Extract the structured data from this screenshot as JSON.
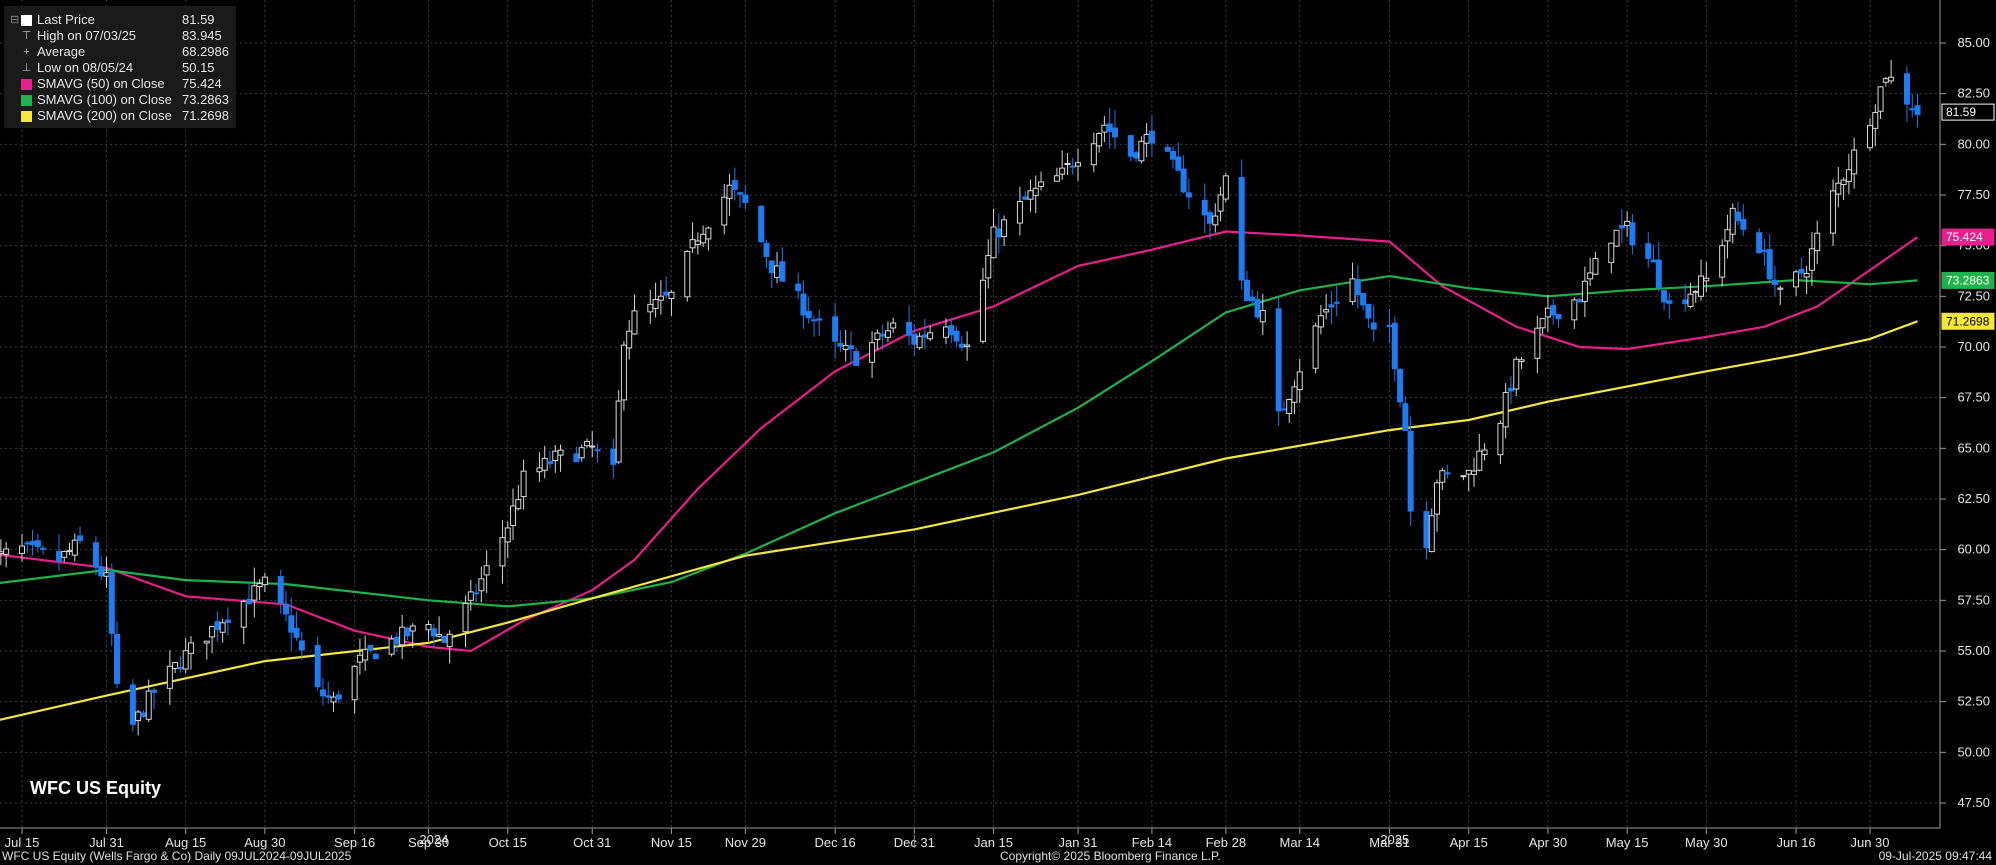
{
  "legend": [
    {
      "label": "Last Price",
      "value": "81.59",
      "swatch": "#ffffff",
      "glyph": ""
    },
    {
      "label": "High on 07/03/25",
      "value": "83.945",
      "swatch": "",
      "glyph": "⊤"
    },
    {
      "label": "Average",
      "value": "68.2986",
      "swatch": "",
      "glyph": "+"
    },
    {
      "label": "Low on 08/05/24",
      "value": "50.15",
      "swatch": "",
      "glyph": "⊥"
    },
    {
      "label": "SMAVG (50)  on Close",
      "value": "75.424",
      "swatch": "#e81e8c",
      "glyph": ""
    },
    {
      "label": "SMAVG (100)  on Close",
      "value": "73.2863",
      "swatch": "#1fb24a",
      "glyph": ""
    },
    {
      "label": "SMAVG (200)  on Close",
      "value": "71.2698",
      "swatch": "#f5e63b",
      "glyph": ""
    }
  ],
  "ticker": "WFC US Equity",
  "footer": {
    "left": "WFC US Equity (Wells Fargo & Co)  Daily 09JUL2024-09JUL2025",
    "center": "Copyright© 2025 Bloomberg Finance L.P.",
    "right": "09-Jul-2025 09:47:44"
  },
  "colors": {
    "background": "#000000",
    "up_candle": "#000000",
    "down_candle": "#1e7bf0",
    "sma50": "#e81e8c",
    "sma100": "#1fb24a",
    "sma200": "#f5e63b",
    "grid": "#3c3c3c"
  },
  "chart_data": {
    "type": "candlestick",
    "y_axis": {
      "range": [
        47.5,
        85.0
      ],
      "ticks": [
        "47.50",
        "50.00",
        "52.50",
        "55.00",
        "57.50",
        "60.00",
        "62.50",
        "65.00",
        "67.50",
        "70.00",
        "72.50",
        "75.00",
        "77.50",
        "80.00",
        "82.50",
        "85.00"
      ],
      "position": "right"
    },
    "x_axis": {
      "date_range": [
        "2024-07-09",
        "2025-07-09"
      ],
      "ticks": [
        {
          "label": "Jul 15",
          "date": "2024-07-15"
        },
        {
          "label": "Jul 31",
          "date": "2024-07-31"
        },
        {
          "label": "Aug 15",
          "date": "2024-08-15"
        },
        {
          "label": "Aug 30",
          "date": "2024-08-30"
        },
        {
          "label": "Sep 16",
          "date": "2024-09-16"
        },
        {
          "label": "Sep 30",
          "date": "2024-09-30"
        },
        {
          "label": "Oct 15",
          "date": "2024-10-15"
        },
        {
          "label": "Oct 31",
          "date": "2024-10-31"
        },
        {
          "label": "Nov 15",
          "date": "2024-11-15"
        },
        {
          "label": "Nov 29",
          "date": "2024-11-29"
        },
        {
          "label": "Dec 16",
          "date": "2024-12-16"
        },
        {
          "label": "Dec 31",
          "date": "2024-12-31"
        },
        {
          "label": "Jan 15",
          "date": "2025-01-15"
        },
        {
          "label": "Jan 31",
          "date": "2025-01-31"
        },
        {
          "label": "Feb 14",
          "date": "2025-02-14"
        },
        {
          "label": "Feb 28",
          "date": "2025-02-28"
        },
        {
          "label": "Mar 14",
          "date": "2025-03-14"
        },
        {
          "label": "Mar 31",
          "date": "2025-03-31"
        },
        {
          "label": "Apr 15",
          "date": "2025-04-15"
        },
        {
          "label": "Apr 30",
          "date": "2025-04-30"
        },
        {
          "label": "May 15",
          "date": "2025-05-15"
        },
        {
          "label": "May 30",
          "date": "2025-05-30"
        },
        {
          "label": "Jun 16",
          "date": "2025-06-16"
        },
        {
          "label": "Jun 30",
          "date": "2025-06-30"
        }
      ],
      "years": [
        {
          "label": "2024",
          "date": "2024-10-01"
        },
        {
          "label": "2025",
          "date": "2025-04-01"
        }
      ]
    },
    "price_path": [
      [
        "2024-07-09",
        59.5
      ],
      [
        "2024-07-15",
        60.0
      ],
      [
        "2024-07-22",
        59.5
      ],
      [
        "2024-07-26",
        60.3
      ],
      [
        "2024-07-31",
        58.5
      ],
      [
        "2024-08-02",
        53.0
      ],
      [
        "2024-08-05",
        51.3
      ],
      [
        "2024-08-09",
        53.0
      ],
      [
        "2024-08-15",
        54.8
      ],
      [
        "2024-08-22",
        56.6
      ],
      [
        "2024-08-30",
        58.3
      ],
      [
        "2024-09-04",
        56.2
      ],
      [
        "2024-09-09",
        53.0
      ],
      [
        "2024-09-12",
        52.5
      ],
      [
        "2024-09-17",
        54.5
      ],
      [
        "2024-09-23",
        55.5
      ],
      [
        "2024-09-30",
        56.3
      ],
      [
        "2024-10-03",
        55.5
      ],
      [
        "2024-10-08",
        57.5
      ],
      [
        "2024-10-11",
        59.0
      ],
      [
        "2024-10-15",
        61.2
      ],
      [
        "2024-10-18",
        63.5
      ],
      [
        "2024-10-24",
        64.5
      ],
      [
        "2024-10-31",
        65.0
      ],
      [
        "2024-11-04",
        63.8
      ],
      [
        "2024-11-06",
        70.5
      ],
      [
        "2024-11-08",
        71.5
      ],
      [
        "2024-11-15",
        72.5
      ],
      [
        "2024-11-20",
        75.5
      ],
      [
        "2024-11-26",
        77.8
      ],
      [
        "2024-11-29",
        77.0
      ],
      [
        "2024-12-04",
        74.0
      ],
      [
        "2024-12-10",
        72.0
      ],
      [
        "2024-12-16",
        70.0
      ],
      [
        "2024-12-20",
        69.5
      ],
      [
        "2024-12-27",
        71.0
      ],
      [
        "2024-12-31",
        70.3
      ],
      [
        "2025-01-06",
        71.3
      ],
      [
        "2025-01-10",
        70.0
      ],
      [
        "2025-01-15",
        75.5
      ],
      [
        "2025-01-22",
        77.5
      ],
      [
        "2025-01-28",
        78.5
      ],
      [
        "2025-01-31",
        79.5
      ],
      [
        "2025-02-05",
        81.0
      ],
      [
        "2025-02-10",
        79.5
      ],
      [
        "2025-02-14",
        80.5
      ],
      [
        "2025-02-20",
        78.0
      ],
      [
        "2025-02-25",
        76.0
      ],
      [
        "2025-02-28",
        78.3
      ],
      [
        "2025-03-03",
        73.0
      ],
      [
        "2025-03-07",
        71.5
      ],
      [
        "2025-03-10",
        66.5
      ],
      [
        "2025-03-14",
        69.0
      ],
      [
        "2025-03-18",
        71.5
      ],
      [
        "2025-03-24",
        73.3
      ],
      [
        "2025-03-28",
        70.5
      ],
      [
        "2025-03-31",
        71.0
      ],
      [
        "2025-04-03",
        66.0
      ],
      [
        "2025-04-04",
        62.0
      ],
      [
        "2025-04-07",
        60.5
      ],
      [
        "2025-04-09",
        63.5
      ],
      [
        "2025-04-15",
        63.8
      ],
      [
        "2025-04-21",
        66.5
      ],
      [
        "2025-04-24",
        69.0
      ],
      [
        "2025-04-30",
        71.5
      ],
      [
        "2025-05-06",
        72.5
      ],
      [
        "2025-05-12",
        75.5
      ],
      [
        "2025-05-15",
        75.8
      ],
      [
        "2025-05-20",
        74.0
      ],
      [
        "2025-05-23",
        72.0
      ],
      [
        "2025-05-30",
        73.3
      ],
      [
        "2025-06-04",
        76.5
      ],
      [
        "2025-06-09",
        75.0
      ],
      [
        "2025-06-13",
        72.5
      ],
      [
        "2025-06-18",
        74.0
      ],
      [
        "2025-06-23",
        77.5
      ],
      [
        "2025-06-27",
        79.5
      ],
      [
        "2025-07-01",
        82.0
      ],
      [
        "2025-07-03",
        83.5
      ],
      [
        "2025-07-09",
        81.59
      ]
    ],
    "series": [
      {
        "name": "SMAVG (50)  on Close",
        "color": "#e81e8c",
        "points": [
          [
            "2024-07-09",
            59.8
          ],
          [
            "2024-07-31",
            59.1
          ],
          [
            "2024-08-15",
            57.7
          ],
          [
            "2024-09-03",
            57.3
          ],
          [
            "2024-09-16",
            56.0
          ],
          [
            "2024-09-30",
            55.2
          ],
          [
            "2024-10-08",
            55.0
          ],
          [
            "2024-10-18",
            56.5
          ],
          [
            "2024-10-31",
            58.0
          ],
          [
            "2024-11-08",
            59.5
          ],
          [
            "2024-11-20",
            63.0
          ],
          [
            "2024-12-02",
            66.0
          ],
          [
            "2024-12-16",
            68.8
          ],
          [
            "2024-12-31",
            70.8
          ],
          [
            "2025-01-15",
            72.0
          ],
          [
            "2025-01-31",
            74.0
          ],
          [
            "2025-02-14",
            74.8
          ],
          [
            "2025-02-28",
            75.7
          ],
          [
            "2025-03-14",
            75.5
          ],
          [
            "2025-03-31",
            75.2
          ],
          [
            "2025-04-10",
            73.0
          ],
          [
            "2025-04-24",
            71.0
          ],
          [
            "2025-05-06",
            70.0
          ],
          [
            "2025-05-15",
            69.9
          ],
          [
            "2025-05-30",
            70.5
          ],
          [
            "2025-06-10",
            71.0
          ],
          [
            "2025-06-20",
            72.0
          ],
          [
            "2025-06-30",
            73.8
          ],
          [
            "2025-07-09",
            75.424
          ]
        ]
      },
      {
        "name": "SMAVG (100)  on Close",
        "color": "#1fb24a",
        "points": [
          [
            "2024-07-09",
            58.3
          ],
          [
            "2024-07-31",
            59.0
          ],
          [
            "2024-08-15",
            58.5
          ],
          [
            "2024-09-03",
            58.3
          ],
          [
            "2024-09-30",
            57.5
          ],
          [
            "2024-10-15",
            57.2
          ],
          [
            "2024-10-31",
            57.6
          ],
          [
            "2024-11-15",
            58.4
          ],
          [
            "2024-11-29",
            59.8
          ],
          [
            "2024-12-16",
            61.8
          ],
          [
            "2024-12-31",
            63.3
          ],
          [
            "2025-01-15",
            64.8
          ],
          [
            "2025-01-31",
            67.0
          ],
          [
            "2025-02-14",
            69.3
          ],
          [
            "2025-02-28",
            71.7
          ],
          [
            "2025-03-14",
            72.8
          ],
          [
            "2025-03-31",
            73.5
          ],
          [
            "2025-04-15",
            72.9
          ],
          [
            "2025-04-30",
            72.5
          ],
          [
            "2025-05-15",
            72.8
          ],
          [
            "2025-05-30",
            73.0
          ],
          [
            "2025-06-16",
            73.3
          ],
          [
            "2025-06-30",
            73.1
          ],
          [
            "2025-07-09",
            73.2863
          ]
        ]
      },
      {
        "name": "SMAVG (200)  on Close",
        "color": "#f5e63b",
        "points": [
          [
            "2024-07-09",
            51.5
          ],
          [
            "2024-07-31",
            52.8
          ],
          [
            "2024-08-30",
            54.5
          ],
          [
            "2024-09-30",
            55.4
          ],
          [
            "2024-10-15",
            56.4
          ],
          [
            "2024-10-31",
            57.6
          ],
          [
            "2024-11-29",
            59.7
          ],
          [
            "2024-12-31",
            61.0
          ],
          [
            "2025-01-31",
            62.7
          ],
          [
            "2025-02-28",
            64.5
          ],
          [
            "2025-03-31",
            65.9
          ],
          [
            "2025-04-15",
            66.4
          ],
          [
            "2025-04-30",
            67.3
          ],
          [
            "2025-05-30",
            68.8
          ],
          [
            "2025-06-16",
            69.6
          ],
          [
            "2025-06-30",
            70.4
          ],
          [
            "2025-07-09",
            71.2698
          ]
        ]
      }
    ],
    "value_tags": [
      {
        "value": 81.59,
        "label": "81.59",
        "bg": "#000000",
        "fg": "#ffffff",
        "border": "#ffffff"
      },
      {
        "value": 75.424,
        "label": "75.424",
        "bg": "#e81e8c",
        "fg": "#ffffff",
        "border": "#e81e8c"
      },
      {
        "value": 73.2863,
        "label": "73.2863",
        "bg": "#1fb24a",
        "fg": "#ffffff",
        "border": "#1fb24a"
      },
      {
        "value": 71.2698,
        "label": "71.2698",
        "bg": "#f5e63b",
        "fg": "#000000",
        "border": "#f5e63b"
      }
    ],
    "grid": true,
    "legend_position": "top-left"
  }
}
